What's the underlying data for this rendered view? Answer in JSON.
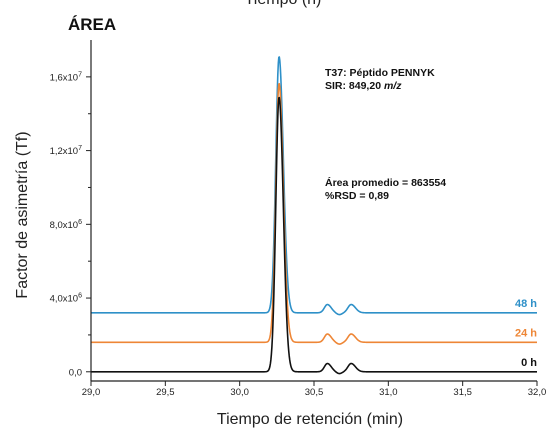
{
  "chart_data": {
    "type": "line",
    "top_clipped_label": "Tiempo (h)",
    "title": "ÁREA",
    "xlabel": "Tiempo de retención (min)",
    "ylabel": "Factor de asimetría (Tf)",
    "xlim": [
      29.0,
      32.0
    ],
    "ylim": [
      -500000,
      18000000
    ],
    "x_ticks": [
      29.0,
      29.5,
      30.0,
      30.5,
      31.0,
      31.5,
      32.0
    ],
    "x_tick_labels": [
      "29,0",
      "29,5",
      "30,0",
      "30,5",
      "31,0",
      "31,5",
      "32,0"
    ],
    "y_ticks": [
      0,
      4000000,
      8000000,
      12000000,
      16000000
    ],
    "y_tick_labels": [
      {
        "base": "0,0",
        "exp": ""
      },
      {
        "base": "4,0x10",
        "exp": "6"
      },
      {
        "base": "8,0x10",
        "exp": "6"
      },
      {
        "base": "1,2x10",
        "exp": "7"
      },
      {
        "base": "1,6x10",
        "exp": "7"
      }
    ],
    "grid": false,
    "annotations": {
      "peptide_line1": "T37: Péptido PENNYK",
      "peptide_line2_prefix": "SIR: 849,20 ",
      "peptide_line2_italic": "m/z",
      "stats_line1": "Área promedio = 863554",
      "stats_line2": "%RSD = 0,89"
    },
    "series": [
      {
        "name": "48 h",
        "color": "#2e90c8",
        "baseline": 3200000,
        "peaks": [
          {
            "center": 30.265,
            "width": 0.022,
            "height": 13900000
          },
          {
            "center": 30.59,
            "width": 0.02,
            "height": 450000
          },
          {
            "center": 30.75,
            "width": 0.022,
            "height": 450000
          }
        ],
        "dips": [
          {
            "center": 30.67,
            "width": 0.018,
            "depth": 100000
          }
        ]
      },
      {
        "name": "24 h",
        "color": "#ee8636",
        "baseline": 1600000,
        "peaks": [
          {
            "center": 30.265,
            "width": 0.022,
            "height": 14050000
          },
          {
            "center": 30.59,
            "width": 0.02,
            "height": 450000
          },
          {
            "center": 30.75,
            "width": 0.022,
            "height": 450000
          }
        ],
        "dips": [
          {
            "center": 30.67,
            "width": 0.018,
            "depth": 100000
          }
        ]
      },
      {
        "name": "0 h",
        "color": "#111111",
        "baseline": 0,
        "peaks": [
          {
            "center": 30.265,
            "width": 0.022,
            "height": 14900000
          },
          {
            "center": 30.59,
            "width": 0.02,
            "height": 450000
          },
          {
            "center": 30.75,
            "width": 0.022,
            "height": 450000
          }
        ],
        "dips": [
          {
            "center": 30.67,
            "width": 0.018,
            "depth": 100000
          }
        ]
      }
    ]
  }
}
